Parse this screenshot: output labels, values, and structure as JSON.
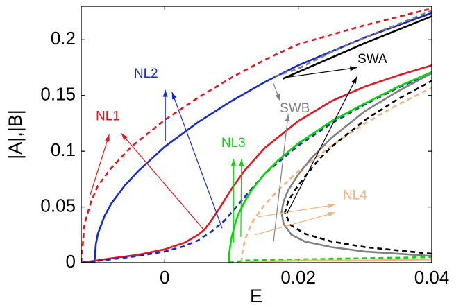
{
  "chart_data": {
    "type": "line",
    "title": "",
    "xlabel": "E",
    "ylabel": "|A|,|B|",
    "xlim": [
      -0.0125,
      0.04
    ],
    "ylim": [
      0,
      0.23
    ],
    "grid": false,
    "x_ticks": [
      0,
      0.02,
      0.04
    ],
    "x_tick_labels": [
      "0",
      "0.02",
      "0.04"
    ],
    "y_ticks": [
      0,
      0.05,
      0.1,
      0.15,
      0.2
    ],
    "y_tick_labels": [
      "0",
      "0.05",
      "0.1",
      "0.15",
      "0.2"
    ],
    "colors": {
      "NL1": "#e8141c",
      "NL2": "#1428d2",
      "NL3": "#00dd00",
      "NL4": "#f4b37a",
      "SWA": "#000000",
      "SWB": "#808080"
    },
    "series": [
      {
        "name": "NL1",
        "style": "dashed",
        "x": [
          -0.0125,
          -0.012,
          -0.011,
          -0.01,
          -0.008,
          -0.005,
          0,
          0.005,
          0.01,
          0.015,
          0.02,
          0.03,
          0.04
        ],
        "y": [
          0.0,
          0.035,
          0.055,
          0.069,
          0.085,
          0.104,
          0.128,
          0.148,
          0.166,
          0.182,
          0.196,
          0.213,
          0.228
        ]
      },
      {
        "name": "NL2",
        "style": "solid",
        "x": [
          -0.0105,
          -0.0104,
          -0.0103,
          -0.01,
          -0.009,
          -0.008,
          -0.006,
          -0.004,
          0,
          0.005,
          0.01,
          0.015,
          0.02,
          0.03,
          0.04
        ],
        "y": [
          0.0,
          0.01,
          0.017,
          0.026,
          0.042,
          0.053,
          0.069,
          0.082,
          0.104,
          0.126,
          0.145,
          0.162,
          0.177,
          0.202,
          0.224
        ]
      },
      {
        "name": "NL1",
        "style": "solid",
        "x": [
          -0.0125,
          -0.008,
          -0.004,
          0,
          0.003,
          0.005,
          0.006,
          0.007,
          0.008,
          0.01,
          0.012,
          0.015,
          0.02,
          0.025,
          0.03,
          0.035,
          0.04
        ],
        "y": [
          0.0,
          0.004,
          0.007,
          0.012,
          0.018,
          0.025,
          0.03,
          0.038,
          0.047,
          0.066,
          0.083,
          0.103,
          0.127,
          0.145,
          0.158,
          0.168,
          0.177
        ]
      },
      {
        "name": "NL2",
        "style": "dashed",
        "x": [
          -0.0125,
          -0.008,
          -0.004,
          0,
          0.003,
          0.005,
          0.007,
          0.009,
          0.011,
          0.013,
          0.015,
          0.02,
          0.025,
          0.03,
          0.035,
          0.04
        ],
        "y": [
          0.0,
          0.003,
          0.006,
          0.01,
          0.015,
          0.02,
          0.028,
          0.038,
          0.052,
          0.066,
          0.08,
          0.105,
          0.125,
          0.142,
          0.157,
          0.17
        ]
      },
      {
        "name": "NL3",
        "style": "solid",
        "x": [
          0.0096,
          0.0097,
          0.01,
          0.0105,
          0.011,
          0.012,
          0.013,
          0.015,
          0.017,
          0.02,
          0.025,
          0.03,
          0.035,
          0.04
        ],
        "y": [
          0.0,
          0.01,
          0.022,
          0.034,
          0.043,
          0.055,
          0.065,
          0.08,
          0.092,
          0.107,
          0.127,
          0.143,
          0.158,
          0.171
        ]
      },
      {
        "name": "NL3",
        "style": "dashed",
        "x": [
          0.0096,
          0.012,
          0.02,
          0.03,
          0.04
        ],
        "y": [
          0.0,
          0.002,
          0.003,
          0.004,
          0.005
        ]
      },
      {
        "name": "NL4",
        "style": "dashed",
        "x": [
          0.0115,
          0.0116,
          0.012,
          0.0125,
          0.013,
          0.014,
          0.015,
          0.017,
          0.02,
          0.025,
          0.03,
          0.035,
          0.04
        ],
        "y": [
          0.0,
          0.008,
          0.02,
          0.028,
          0.035,
          0.044,
          0.052,
          0.065,
          0.082,
          0.105,
          0.125,
          0.142,
          0.157
        ]
      },
      {
        "name": "NL4",
        "style": "solid",
        "x": [
          0.0115,
          0.015,
          0.02,
          0.03,
          0.04
        ],
        "y": [
          0.0,
          0.001,
          0.002,
          0.002,
          0.003
        ]
      },
      {
        "name": "SWB",
        "style": "solid",
        "x": [
          0.04,
          0.035,
          0.03,
          0.025,
          0.021,
          0.019,
          0.0178,
          0.0175,
          0.0178,
          0.0185,
          0.02,
          0.022,
          0.025,
          0.03,
          0.035,
          0.04
        ],
        "y": [
          0.006,
          0.008,
          0.01,
          0.014,
          0.019,
          0.025,
          0.035,
          0.045,
          0.055,
          0.065,
          0.079,
          0.094,
          0.112,
          0.136,
          0.154,
          0.17
        ]
      },
      {
        "name": "SWA",
        "style": "dashed",
        "x": [
          0.04,
          0.035,
          0.03,
          0.025,
          0.021,
          0.0188,
          0.018,
          0.0185,
          0.0195,
          0.021,
          0.023,
          0.025,
          0.03,
          0.035,
          0.04
        ],
        "y": [
          0.008,
          0.011,
          0.014,
          0.019,
          0.026,
          0.034,
          0.045,
          0.055,
          0.065,
          0.077,
          0.092,
          0.104,
          0.128,
          0.147,
          0.163
        ]
      },
      {
        "name": "SWA",
        "style": "solid",
        "x": [
          0.0177,
          0.02,
          0.025,
          0.03,
          0.035,
          0.04
        ],
        "y": [
          0.165,
          0.171,
          0.184,
          0.197,
          0.209,
          0.221
        ]
      },
      {
        "name": "SWB",
        "style": "dashed",
        "x": [
          0.0165,
          0.02,
          0.025,
          0.03,
          0.035,
          0.04
        ],
        "y": [
          0.167,
          0.174,
          0.189,
          0.202,
          0.214,
          0.226
        ]
      }
    ],
    "annotations": [
      {
        "text": "NL1",
        "color": "#e8141c",
        "x": -0.0085,
        "y": 0.131,
        "arrows": [
          [
            -0.0112,
            0.06,
            -0.0083,
            0.115
          ],
          [
            0.0058,
            0.03,
            -0.0065,
            0.116
          ]
        ]
      },
      {
        "text": "NL2",
        "color": "#1428d2",
        "x": -0.0028,
        "y": 0.169,
        "arrows": [
          [
            0.0001,
            0.109,
            0.0001,
            0.155
          ],
          [
            0.0086,
            0.031,
            0.0011,
            0.153
          ]
        ]
      },
      {
        "text": "NL3",
        "color": "#00dd00",
        "x": 0.0103,
        "y": 0.107,
        "arrows": [
          [
            0.0103,
            0.018,
            0.0103,
            0.093
          ],
          [
            0.0114,
            0.023,
            0.0115,
            0.093
          ]
        ]
      },
      {
        "text": "NL4",
        "color": "#f4b37a",
        "x": 0.0285,
        "y": 0.06,
        "arrows": [
          [
            0.0139,
            0.041,
            0.0255,
            0.052
          ],
          [
            0.0135,
            0.025,
            0.0255,
            0.045
          ]
        ]
      },
      {
        "text": "SWA",
        "color": "#000000",
        "x": 0.0311,
        "y": 0.182,
        "arrows": [
          [
            0.018,
            0.166,
            0.0288,
            0.175
          ],
          [
            0.0183,
            0.044,
            0.0288,
            0.167
          ]
        ]
      },
      {
        "text": "SWB",
        "color": "#808080",
        "x": 0.0195,
        "y": 0.138,
        "arrows": [
          [
            0.0162,
            0.162,
            0.0173,
            0.145
          ],
          [
            0.0163,
            0.019,
            0.0185,
            0.133
          ]
        ]
      }
    ]
  }
}
